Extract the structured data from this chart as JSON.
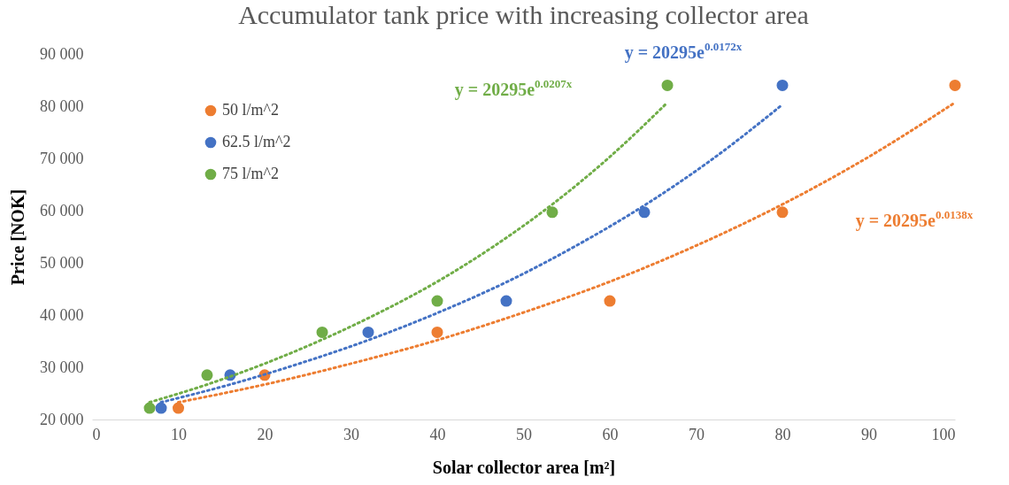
{
  "chart_data": {
    "type": "scatter",
    "title": "Accumulator tank price with increasing collector area",
    "xlabel": "Solar collector area [m²]",
    "ylabel": "Price [NOK]",
    "xlim": [
      0,
      100
    ],
    "xticks": [
      0,
      10,
      20,
      30,
      40,
      50,
      60,
      70,
      80,
      90,
      100
    ],
    "ylim": [
      20000,
      90000
    ],
    "yticks": [
      {
        "value": 20000,
        "label": "20 000"
      },
      {
        "value": 30000,
        "label": "30 000"
      },
      {
        "value": 40000,
        "label": "40 000"
      },
      {
        "value": 50000,
        "label": "50 000"
      },
      {
        "value": 60000,
        "label": "60 000"
      },
      {
        "value": 70000,
        "label": "70 000"
      },
      {
        "value": 80000,
        "label": "80 000"
      },
      {
        "value": 90000,
        "label": "90 000"
      }
    ],
    "grid": false,
    "legend": "top left",
    "series": [
      {
        "marker": "circle",
        "name": "50 l/m^2",
        "color": "#ed7d31",
        "x": [
          10,
          20,
          40,
          60,
          80,
          100
        ],
        "values": [
          22200,
          28500,
          36700,
          42700,
          59700,
          84000
        ]
      },
      {
        "marker": "circle",
        "name": "62.5 l/m^2",
        "color": "#4472c4",
        "x": [
          8,
          16,
          32,
          48,
          64,
          80
        ],
        "values": [
          22200,
          28500,
          36700,
          42700,
          59700,
          84000
        ]
      },
      {
        "marker": "circle",
        "name": "75 l/m^2",
        "color": "#70ad47",
        "x": [
          6.67,
          13.33,
          26.67,
          40,
          53.33,
          66.67
        ],
        "values": [
          22200,
          28500,
          36700,
          42700,
          59700,
          84000
        ]
      },
      {
        "type": "line",
        "marker": "none",
        "line_style": "dotted",
        "color": "#ed7d31",
        "x": [
          10,
          20,
          30,
          40,
          50,
          60,
          70,
          80,
          90,
          100
        ],
        "values": [
          23300,
          26700,
          30700,
          35200,
          40500,
          46400,
          53300,
          61200,
          70300,
          80700
        ]
      },
      {
        "type": "line",
        "marker": "none",
        "line_style": "dotted",
        "color": "#4472c4",
        "x": [
          8,
          16,
          24,
          32,
          40,
          48,
          56,
          64,
          72,
          80
        ],
        "values": [
          23300,
          26700,
          30700,
          35200,
          40400,
          46300,
          53200,
          61000,
          70000,
          80300
        ]
      },
      {
        "type": "line",
        "marker": "none",
        "line_style": "dotted",
        "color": "#70ad47",
        "x": [
          6.67,
          13.33,
          20,
          26.67,
          33.33,
          40,
          46.67,
          53.33,
          60,
          66.67
        ],
        "values": [
          23300,
          26700,
          30700,
          35300,
          40500,
          46400,
          53300,
          61200,
          70300,
          80700
        ]
      }
    ],
    "annotations": [
      "y = 20295e$^{0.0138x}$",
      "y = 20295e$^{0.0172x}$",
      "y = 20295e$^{0.0207x}$"
    ]
  }
}
